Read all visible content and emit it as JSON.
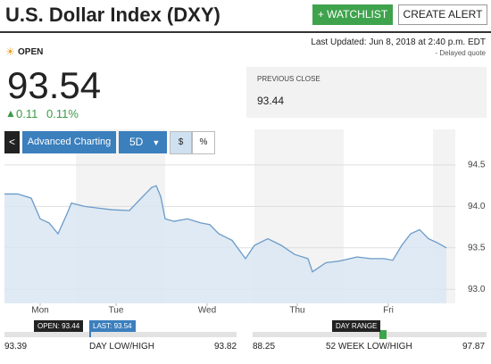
{
  "header": {
    "title": "U.S. Dollar Index (DXY)",
    "watchlist_button": "+ WATCHLIST",
    "alert_button": "CREATE ALERT"
  },
  "status": "OPEN",
  "last_updated": "Last Updated: Jun 8, 2018 at 2:40 p.m. EDT",
  "delay_note": "- Delayed quote",
  "price": "93.54",
  "change": "0.11",
  "change_percent": "0.11%",
  "previous_close": {
    "label": "PREVIOUS CLOSE",
    "value": "93.44"
  },
  "toolbar": {
    "back": "<",
    "advanced": "Advanced Charting",
    "range": "5D",
    "dollar": "$",
    "percent": "%"
  },
  "chart_data": {
    "type": "area",
    "color": "#6b9bc9",
    "fill": "#d9e6f2",
    "x": [
      0,
      0.15,
      0.3,
      0.4,
      0.5,
      0.6,
      0.7,
      0.75,
      0.9,
      1.05,
      1.2,
      1.4,
      1.55,
      1.65,
      1.7,
      1.75,
      1.8,
      1.9,
      2.05,
      2.2,
      2.3,
      2.4,
      2.55,
      2.7,
      2.8,
      2.95,
      3.1,
      3.25,
      3.4,
      3.45,
      3.6,
      3.75,
      3.95,
      4.1,
      4.25,
      4.35,
      4.45,
      4.55,
      4.65,
      4.75,
      4.85,
      4.95
    ],
    "values": [
      94.15,
      94.15,
      94.1,
      93.85,
      93.8,
      93.67,
      93.91,
      94.04,
      94.0,
      93.98,
      93.96,
      93.95,
      94.12,
      94.23,
      94.25,
      94.12,
      93.85,
      93.82,
      93.85,
      93.8,
      93.78,
      93.67,
      93.59,
      93.37,
      93.53,
      93.61,
      93.53,
      93.42,
      93.37,
      93.21,
      93.32,
      93.34,
      93.39,
      93.37,
      93.37,
      93.35,
      93.53,
      93.67,
      93.72,
      93.61,
      93.56,
      93.5
    ],
    "xlim": [
      0,
      5.05
    ],
    "xticks": [
      {
        "value": 0.4,
        "label": "Mon"
      },
      {
        "value": 1.25,
        "label": "Tue"
      },
      {
        "value": 2.27,
        "label": "Wed"
      },
      {
        "value": 3.28,
        "label": "Thu"
      },
      {
        "value": 4.3,
        "label": "Fri"
      }
    ],
    "ylim": [
      92.83,
      94.93
    ],
    "yticks": [
      {
        "value": 93,
        "label": "93.0"
      },
      93.5,
      {
        "value": 94,
        "label": "94.0"
      },
      94.5
    ],
    "grid": true
  },
  "day_range": {
    "low": "93.39",
    "label": "DAY LOW/HIGH",
    "high": "93.82",
    "open_flag": "OPEN: 93.44",
    "last_flag": "LAST: 93.54"
  },
  "week52_range": {
    "low": "88.25",
    "label": "52 WEEK LOW/HIGH",
    "high": "97.87",
    "flag": "DAY RANGE"
  }
}
